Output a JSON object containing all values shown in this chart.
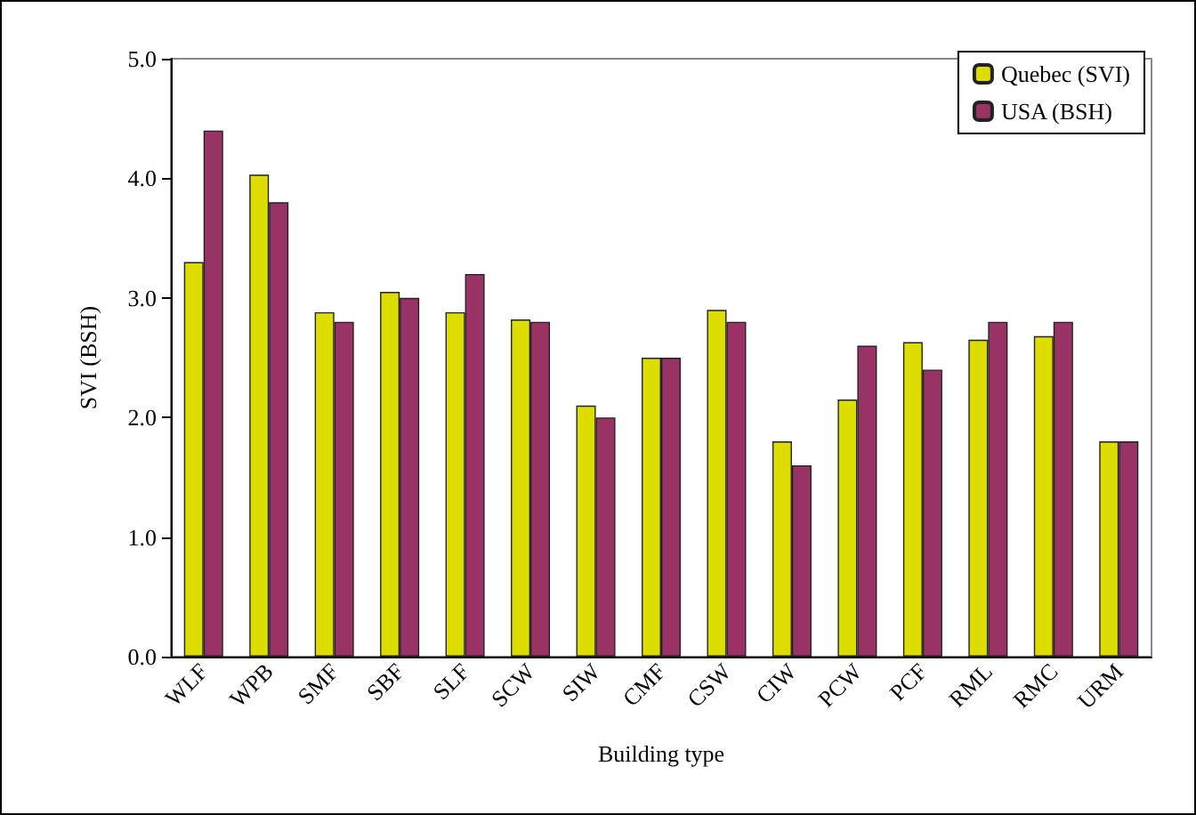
{
  "chart_data": {
    "type": "bar",
    "xlabel": "Building type",
    "ylabel": "SVI (BSH)",
    "categories": [
      "WLF",
      "WPB",
      "SMF",
      "SBF",
      "SLF",
      "SCW",
      "SIW",
      "CMF",
      "CSW",
      "CIW",
      "PCW",
      "PCF",
      "RML",
      "RMC",
      "URM"
    ],
    "series": [
      {
        "name": "Quebec (SVI)",
        "color": "#dddd00",
        "values": [
          3.3,
          4.03,
          2.88,
          3.05,
          2.88,
          2.82,
          2.1,
          2.5,
          2.9,
          1.8,
          2.15,
          2.63,
          2.65,
          2.68,
          1.8
        ]
      },
      {
        "name": "USA (BSH)",
        "color": "#993366",
        "values": [
          4.4,
          3.8,
          2.8,
          3.0,
          3.2,
          2.8,
          2.0,
          2.5,
          2.8,
          1.6,
          2.6,
          2.4,
          2.8,
          2.8,
          1.8
        ]
      }
    ],
    "ylim": [
      0,
      5
    ],
    "yticks": [
      {
        "value": 0,
        "label": "0.0"
      },
      {
        "value": 1,
        "label": "1.0"
      },
      {
        "value": 2,
        "label": "2.0"
      },
      {
        "value": 3,
        "label": "3.0"
      },
      {
        "value": 4,
        "label": "4.0"
      },
      {
        "value": 5,
        "label": "5.0"
      }
    ],
    "grid": false,
    "legend": "top right"
  }
}
